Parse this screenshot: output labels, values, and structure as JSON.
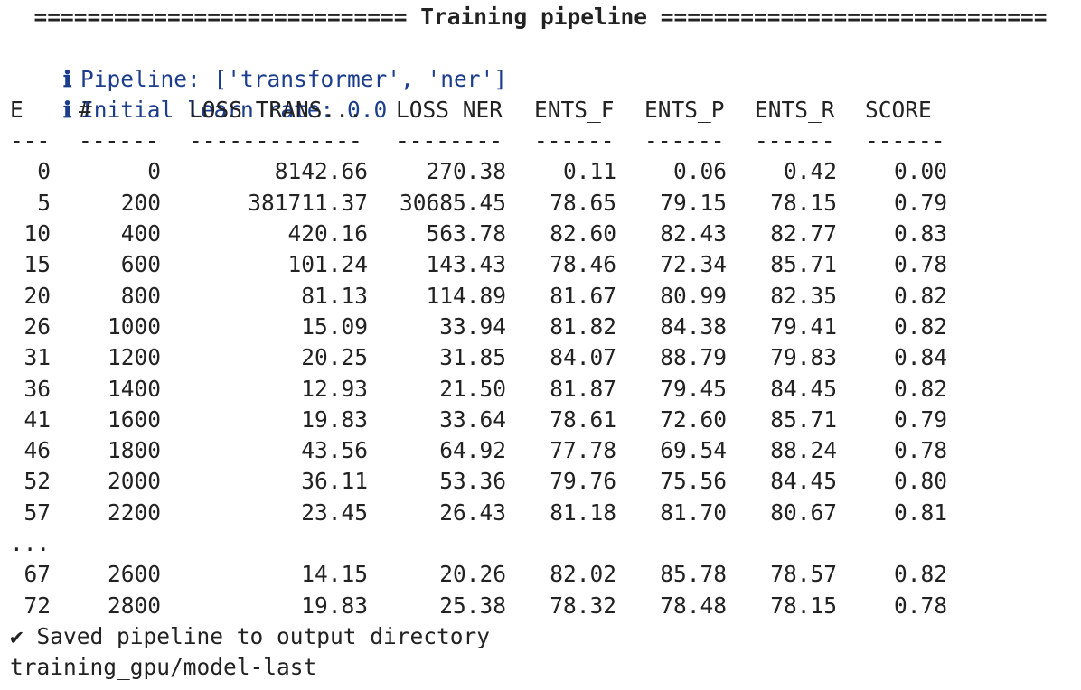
{
  "banner": "============================ Training pipeline =============================",
  "info_lines": [
    {
      "icon": "ℹ",
      "text": "Pipeline: ['transformer', 'ner']"
    },
    {
      "icon": "ℹ",
      "text": "Initial learn rate: 0.0"
    }
  ],
  "table": {
    "headers": [
      "E",
      "#",
      "LOSS TRANS...",
      "LOSS NER",
      "ENTS_F",
      "ENTS_P",
      "ENTS_R",
      "SCORE"
    ],
    "dashes": [
      "---",
      "------",
      "-------------",
      "--------",
      "------",
      "------",
      "------",
      "------"
    ],
    "rows": [
      [
        "0",
        "0",
        "8142.66",
        "270.38",
        "0.11",
        "0.06",
        "0.42",
        "0.00"
      ],
      [
        "5",
        "200",
        "381711.37",
        "30685.45",
        "78.65",
        "79.15",
        "78.15",
        "0.79"
      ],
      [
        "10",
        "400",
        "420.16",
        "563.78",
        "82.60",
        "82.43",
        "82.77",
        "0.83"
      ],
      [
        "15",
        "600",
        "101.24",
        "143.43",
        "78.46",
        "72.34",
        "85.71",
        "0.78"
      ],
      [
        "20",
        "800",
        "81.13",
        "114.89",
        "81.67",
        "80.99",
        "82.35",
        "0.82"
      ],
      [
        "26",
        "1000",
        "15.09",
        "33.94",
        "81.82",
        "84.38",
        "79.41",
        "0.82"
      ],
      [
        "31",
        "1200",
        "20.25",
        "31.85",
        "84.07",
        "88.79",
        "79.83",
        "0.84"
      ],
      [
        "36",
        "1400",
        "12.93",
        "21.50",
        "81.87",
        "79.45",
        "84.45",
        "0.82"
      ],
      [
        "41",
        "1600",
        "19.83",
        "33.64",
        "78.61",
        "72.60",
        "85.71",
        "0.79"
      ],
      [
        "46",
        "1800",
        "43.56",
        "64.92",
        "77.78",
        "69.54",
        "88.24",
        "0.78"
      ],
      [
        "52",
        "2000",
        "36.11",
        "53.36",
        "79.76",
        "75.56",
        "84.45",
        "0.80"
      ],
      [
        "57",
        "2200",
        "23.45",
        "26.43",
        "81.18",
        "81.70",
        "80.67",
        "0.81"
      ]
    ],
    "ellipsis": "...",
    "rows_after": [
      [
        "67",
        "2600",
        "14.15",
        "20.26",
        "82.02",
        "85.78",
        "78.57",
        "0.82"
      ],
      [
        "72",
        "2800",
        "19.83",
        "25.38",
        "78.32",
        "78.48",
        "78.15",
        "0.78"
      ]
    ]
  },
  "footer": {
    "check_icon": "✔",
    "saved_text": "Saved pipeline to output directory",
    "path": "training_gpu/model-last"
  }
}
